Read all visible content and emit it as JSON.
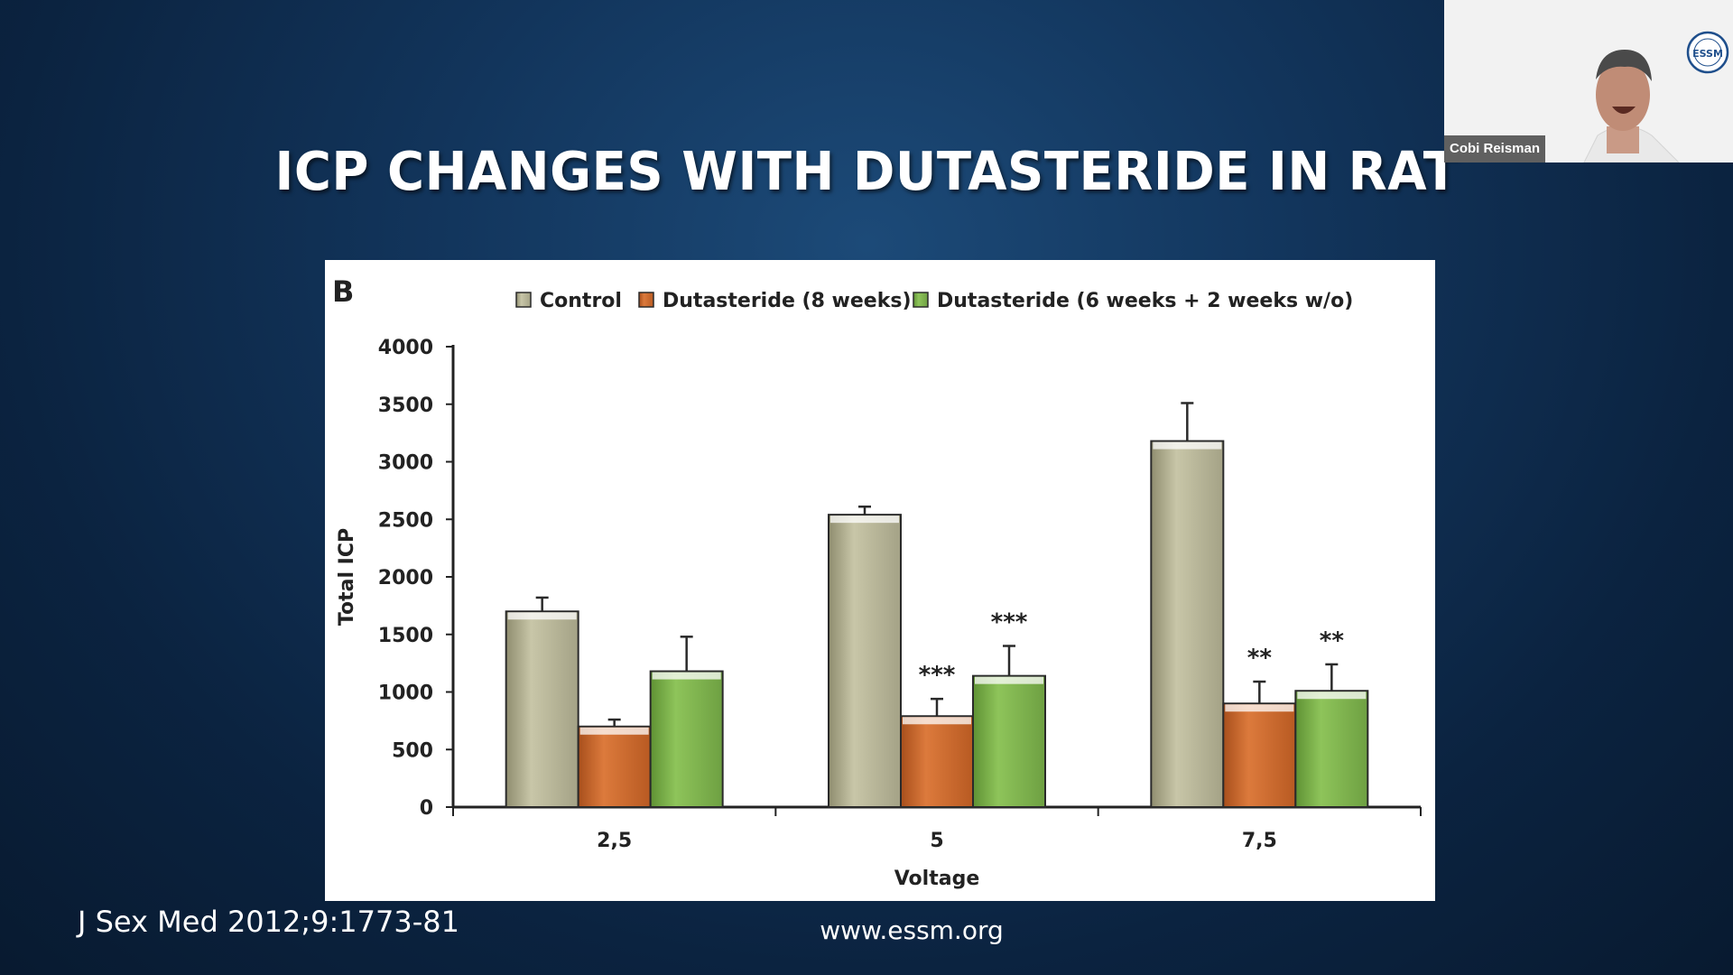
{
  "slide": {
    "title": "ICP CHANGES WITH DUTASTERIDE IN RAT",
    "citation": "J Sex Med 2012;9:1773-81",
    "footer_url": "www.essm.org"
  },
  "video": {
    "participant_name": "Cobi Reisman",
    "logo_text": "ESSM"
  },
  "chart_data": {
    "type": "bar",
    "panel_label": "B",
    "categories": [
      "2,5",
      "5",
      "7,5"
    ],
    "xlabel": "Voltage",
    "ylabel": "Total ICP",
    "ylim": [
      0,
      4000
    ],
    "yticks": [
      "0",
      "500",
      "1000",
      "1500",
      "2000",
      "2500",
      "3000",
      "3500",
      "4000"
    ],
    "legend_position": "top",
    "series": [
      {
        "name": "Control",
        "color": "#b8b597",
        "values": [
          1700,
          2540,
          3180
        ],
        "errors": [
          120,
          70,
          330
        ],
        "marks": [
          "",
          "",
          ""
        ]
      },
      {
        "name": "Dutasteride (8 weeks)",
        "color": "#cc6a30",
        "values": [
          700,
          790,
          900
        ],
        "errors": [
          60,
          150,
          190
        ],
        "marks": [
          "",
          "***",
          "**"
        ]
      },
      {
        "name": "Dutasteride (6 weeks + 2 weeks w/o)",
        "color": "#7fb24f",
        "values": [
          1180,
          1140,
          1010
        ],
        "errors": [
          300,
          260,
          230
        ],
        "marks": [
          "",
          "***",
          "**"
        ]
      }
    ]
  }
}
